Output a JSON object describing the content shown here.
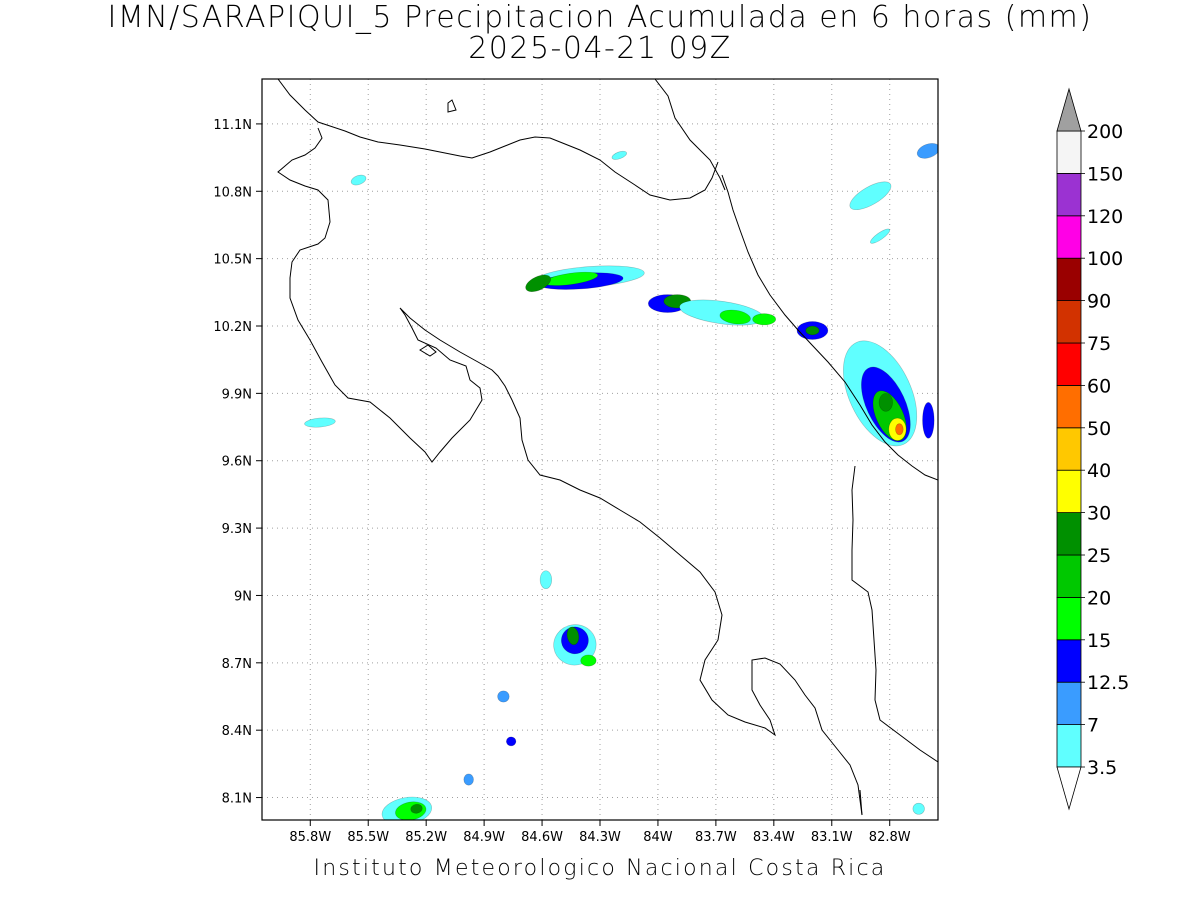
{
  "header": {
    "title": "IMN/SARAPIQUI_5 Precipitacion Acumulada en 6 horas (mm)",
    "subtitle": "2025-04-21 09Z"
  },
  "footer": {
    "credit": "Instituto Meteorologico Nacional Costa Rica"
  },
  "map": {
    "lon_range": [
      -86.05,
      -82.55
    ],
    "lat_range": [
      8.0,
      11.3
    ],
    "lat_ticks": [
      {
        "value": 11.1,
        "label": "11.1N"
      },
      {
        "value": 10.8,
        "label": "10.8N"
      },
      {
        "value": 10.5,
        "label": "10.5N"
      },
      {
        "value": 10.2,
        "label": "10.2N"
      },
      {
        "value": 9.9,
        "label": "9.9N"
      },
      {
        "value": 9.6,
        "label": "9.6N"
      },
      {
        "value": 9.3,
        "label": "9.3N"
      },
      {
        "value": 9.0,
        "label": "9N"
      },
      {
        "value": 8.7,
        "label": "8.7N"
      },
      {
        "value": 8.4,
        "label": "8.4N"
      },
      {
        "value": 8.1,
        "label": "8.1N"
      }
    ],
    "lon_ticks": [
      {
        "value": -85.8,
        "label": "85.8W"
      },
      {
        "value": -85.5,
        "label": "85.5W"
      },
      {
        "value": -85.2,
        "label": "85.2W"
      },
      {
        "value": -84.9,
        "label": "84.9W"
      },
      {
        "value": -84.6,
        "label": "84.6W"
      },
      {
        "value": -84.3,
        "label": "84.3W"
      },
      {
        "value": -84.0,
        "label": "84W"
      },
      {
        "value": -83.7,
        "label": "83.7W"
      },
      {
        "value": -83.4,
        "label": "83.4W"
      },
      {
        "value": -83.1,
        "label": "83.1W"
      },
      {
        "value": -82.8,
        "label": "82.8W"
      }
    ],
    "grid": "dotted",
    "precip_cells": [
      {
        "lon": -84.35,
        "lat": 10.42,
        "rx": 0.28,
        "ry": 0.045,
        "rot": -4,
        "level": 0
      },
      {
        "lon": -84.4,
        "lat": 10.4,
        "rx": 0.22,
        "ry": 0.035,
        "rot": -4,
        "level": 2
      },
      {
        "lon": -84.45,
        "lat": 10.41,
        "rx": 0.14,
        "ry": 0.025,
        "rot": -8,
        "level": 3
      },
      {
        "lon": -84.62,
        "lat": 10.39,
        "rx": 0.07,
        "ry": 0.03,
        "rot": -25,
        "level": 5
      },
      {
        "lon": -83.95,
        "lat": 10.3,
        "rx": 0.1,
        "ry": 0.04,
        "rot": 0,
        "level": 2
      },
      {
        "lon": -83.9,
        "lat": 10.31,
        "rx": 0.07,
        "ry": 0.03,
        "rot": 0,
        "level": 5
      },
      {
        "lon": -83.67,
        "lat": 10.26,
        "rx": 0.22,
        "ry": 0.05,
        "rot": 8,
        "level": 0
      },
      {
        "lon": -83.6,
        "lat": 10.24,
        "rx": 0.08,
        "ry": 0.03,
        "rot": 8,
        "level": 3
      },
      {
        "lon": -83.45,
        "lat": 10.23,
        "rx": 0.06,
        "ry": 0.025,
        "rot": 0,
        "level": 3
      },
      {
        "lon": -83.2,
        "lat": 10.18,
        "rx": 0.08,
        "ry": 0.04,
        "rot": 0,
        "level": 2
      },
      {
        "lon": -83.2,
        "lat": 10.18,
        "rx": 0.035,
        "ry": 0.02,
        "rot": 0,
        "level": 5
      },
      {
        "lon": -82.85,
        "lat": 9.9,
        "rx": 0.16,
        "ry": 0.25,
        "rot": -25,
        "level": 0
      },
      {
        "lon": -82.82,
        "lat": 9.85,
        "rx": 0.1,
        "ry": 0.18,
        "rot": -25,
        "level": 2
      },
      {
        "lon": -82.8,
        "lat": 9.8,
        "rx": 0.07,
        "ry": 0.12,
        "rot": -25,
        "level": 4
      },
      {
        "lon": -82.82,
        "lat": 9.86,
        "rx": 0.035,
        "ry": 0.04,
        "rot": 0,
        "level": 5
      },
      {
        "lon": -82.76,
        "lat": 9.74,
        "rx": 0.045,
        "ry": 0.05,
        "rot": 0,
        "level": 6
      },
      {
        "lon": -82.75,
        "lat": 9.74,
        "rx": 0.02,
        "ry": 0.025,
        "rot": 0,
        "level": 8
      },
      {
        "lon": -82.6,
        "lat": 9.78,
        "rx": 0.03,
        "ry": 0.08,
        "rot": 0,
        "level": 2
      },
      {
        "lon": -82.9,
        "lat": 10.78,
        "rx": 0.12,
        "ry": 0.04,
        "rot": -30,
        "level": 0
      },
      {
        "lon": -82.6,
        "lat": 10.98,
        "rx": 0.06,
        "ry": 0.03,
        "rot": -20,
        "level": 1
      },
      {
        "lon": -82.85,
        "lat": 10.6,
        "rx": 0.06,
        "ry": 0.015,
        "rot": -35,
        "level": 0
      },
      {
        "lon": -84.43,
        "lat": 8.78,
        "rx": 0.11,
        "ry": 0.09,
        "rot": -10,
        "level": 0
      },
      {
        "lon": -84.43,
        "lat": 8.8,
        "rx": 0.07,
        "ry": 0.06,
        "rot": -10,
        "level": 2
      },
      {
        "lon": -84.44,
        "lat": 8.82,
        "rx": 0.03,
        "ry": 0.04,
        "rot": -10,
        "level": 5
      },
      {
        "lon": -84.36,
        "lat": 8.71,
        "rx": 0.04,
        "ry": 0.025,
        "rot": 0,
        "level": 3
      },
      {
        "lon": -85.3,
        "lat": 8.04,
        "rx": 0.13,
        "ry": 0.06,
        "rot": -10,
        "level": 0
      },
      {
        "lon": -85.28,
        "lat": 8.04,
        "rx": 0.08,
        "ry": 0.04,
        "rot": -10,
        "level": 3
      },
      {
        "lon": -85.25,
        "lat": 8.05,
        "rx": 0.03,
        "ry": 0.02,
        "rot": -10,
        "level": 5
      },
      {
        "lon": -84.98,
        "lat": 8.18,
        "rx": 0.025,
        "ry": 0.025,
        "rot": 0,
        "level": 1
      },
      {
        "lon": -84.76,
        "lat": 8.35,
        "rx": 0.025,
        "ry": 0.02,
        "rot": 0,
        "level": 2
      },
      {
        "lon": -85.75,
        "lat": 9.77,
        "rx": 0.08,
        "ry": 0.02,
        "rot": -5,
        "level": 0
      },
      {
        "lon": -85.55,
        "lat": 10.85,
        "rx": 0.04,
        "ry": 0.02,
        "rot": -20,
        "level": 0
      },
      {
        "lon": -84.58,
        "lat": 9.07,
        "rx": 0.03,
        "ry": 0.04,
        "rot": 0,
        "level": 0
      },
      {
        "lon": -84.8,
        "lat": 8.55,
        "rx": 0.03,
        "ry": 0.025,
        "rot": 0,
        "level": 1
      },
      {
        "lon": -82.65,
        "lat": 8.05,
        "rx": 0.03,
        "ry": 0.025,
        "rot": 0,
        "level": 0
      },
      {
        "lon": -84.2,
        "lat": 10.96,
        "rx": 0.04,
        "ry": 0.015,
        "rot": -20,
        "level": 0
      }
    ]
  },
  "colorbar": {
    "over_color": "#a0a0a0",
    "under_color": "#ffffff",
    "colors": [
      "#60ffff",
      "#3a9cff",
      "#0000ff",
      "#00ff00",
      "#00c800",
      "#009000",
      "#ffff00",
      "#ffc800",
      "#ff6e00",
      "#ff0000",
      "#d23200",
      "#9a0000",
      "#ff00e6",
      "#9b32d2",
      "#f5f5f5"
    ],
    "labels": [
      "3.5",
      "7",
      "12.5",
      "15",
      "20",
      "25",
      "30",
      "40",
      "50",
      "60",
      "75",
      "90",
      "100",
      "120",
      "150",
      "200"
    ]
  }
}
